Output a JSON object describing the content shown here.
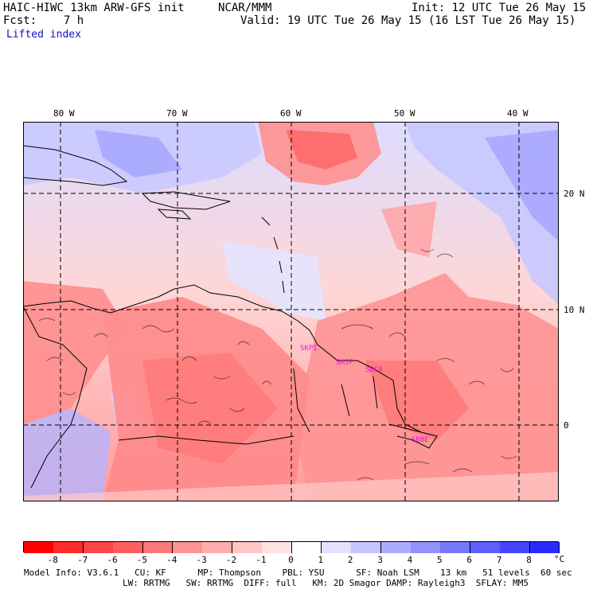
{
  "header": {
    "title": "HAIC-HIWC 13km ARW-GFS init",
    "org": "NCAR/MMM",
    "init": "Init: 12 UTC Tue 26 May 15",
    "fcst": "Fcst:    7 h",
    "valid": "Valid: 19 UTC Tue 26 May 15 (16 LST Tue 26 May 15)",
    "field": "Lifted index"
  },
  "map": {
    "lon_ticks": [
      "80 W",
      "70 W",
      "60 W",
      "50 W",
      "40 W"
    ],
    "lat_ticks": [
      "20 N",
      "10 N",
      "0"
    ],
    "station_labels": [
      "SKPI",
      "SMJP",
      "SOCA",
      "SBBE"
    ],
    "colors": {
      "grid": "#000000",
      "coast": "#000000",
      "station": "#ff00ff"
    }
  },
  "colorbar": {
    "labels": [
      "-8",
      "-7",
      "-6",
      "-5",
      "-4",
      "-3",
      "-2",
      "-1",
      "0",
      "1",
      "2",
      "3",
      "4",
      "5",
      "6",
      "7",
      "8"
    ],
    "unit": "°C",
    "colors": [
      "#ff0000",
      "#ff2a2a",
      "#ff4545",
      "#ff5f5f",
      "#ff7878",
      "#ff9292",
      "#ffacac",
      "#ffc6c6",
      "#ffe2e2",
      "#ffffff",
      "#e2e2ff",
      "#c6c6ff",
      "#acacff",
      "#9292ff",
      "#7878ff",
      "#5f5fff",
      "#4545ff",
      "#2a2aff"
    ]
  },
  "footer": {
    "line1": "Model Info: V3.6.1   CU: KF      MP: Thompson    PBL: YSU      SF: Noah LSM    13 km   51 levels  60 sec",
    "line2": "LW: RRTMG   SW: RRTMG  DIFF: full   KM: 2D Smagor DAMP: Rayleigh3  SFLAY: MM5"
  }
}
